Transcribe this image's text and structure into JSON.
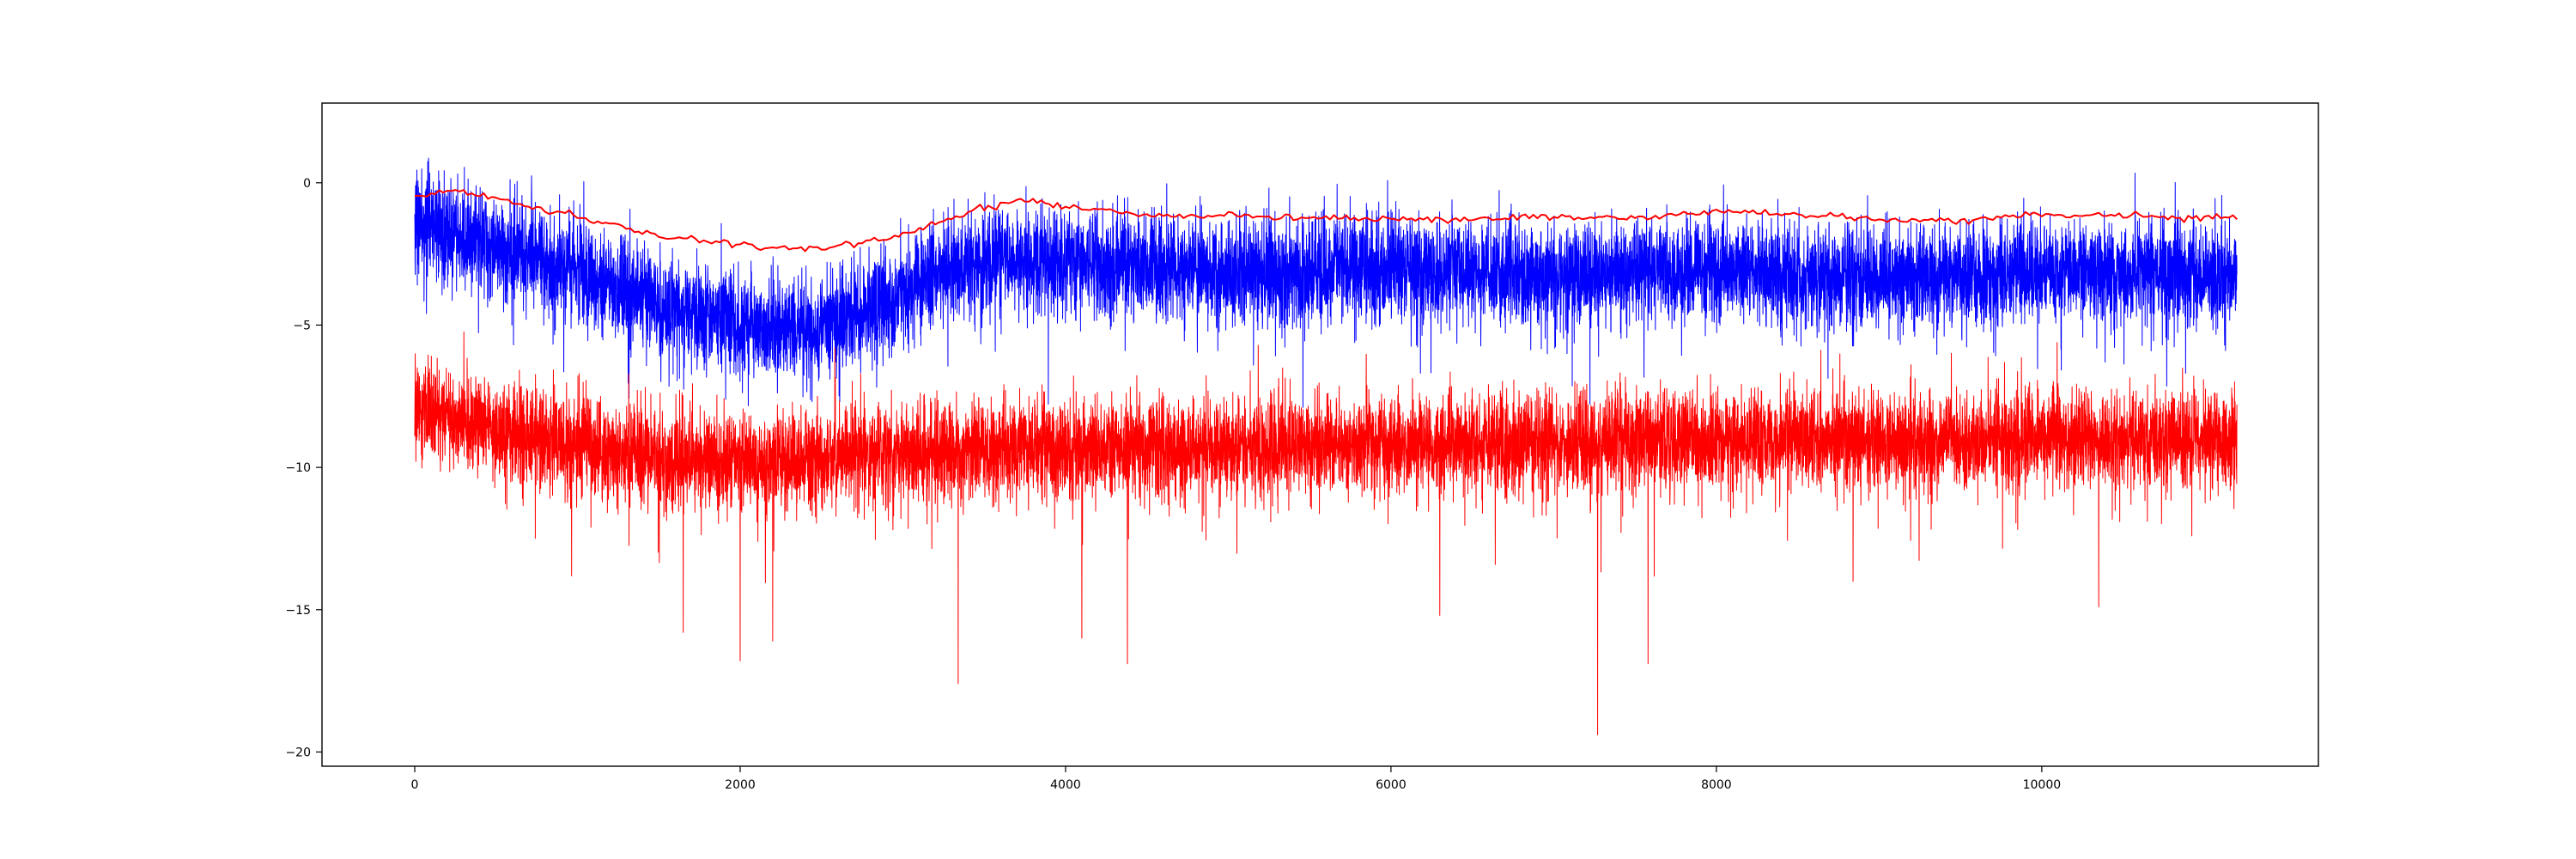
{
  "chart_data": {
    "type": "line",
    "title": "",
    "xlabel": "",
    "ylabel": "",
    "xlim": [
      -570,
      11700
    ],
    "ylim": [
      -20.5,
      2.8
    ],
    "x_ticks": [
      0,
      2000,
      4000,
      6000,
      8000,
      10000
    ],
    "y_ticks": [
      0,
      -5,
      -10,
      -15,
      -20
    ],
    "x_tick_labels": [
      "0",
      "2000",
      "4000",
      "6000",
      "8000",
      "10000"
    ],
    "y_tick_labels": [
      "0",
      "−5",
      "−10",
      "−15",
      "−20"
    ],
    "grid": false,
    "legend": "none",
    "n_points": 11200,
    "series": [
      {
        "color": "#0000ff",
        "style": "noisy",
        "trend": {
          "x": [
            0,
            300,
            600,
            1000,
            1500,
            2000,
            2400,
            2800,
            3200,
            3600,
            4000,
            5000,
            6000,
            7000,
            8000,
            9000,
            10000,
            11200
          ],
          "y": [
            -1.3,
            -1.9,
            -2.4,
            -3.1,
            -4.3,
            -5.0,
            -5.2,
            -4.5,
            -3.2,
            -2.6,
            -2.8,
            -3.2,
            -3.0,
            -3.3,
            -3.0,
            -3.4,
            -3.1,
            -3.3
          ]
        },
        "spread": 0.9,
        "max": 1.7,
        "min": -7.9
      },
      {
        "color": "#ff0000",
        "style": "noisy",
        "trend": {
          "x": [
            0,
            500,
            1000,
            1500,
            2000,
            3000,
            4000,
            5000,
            6000,
            7000,
            8000,
            9000,
            10000,
            11200
          ],
          "y": [
            -7.9,
            -8.7,
            -9.2,
            -9.7,
            -9.8,
            -9.5,
            -9.3,
            -9.3,
            -9.2,
            -9.1,
            -9.0,
            -9.1,
            -9.0,
            -9.0
          ]
        },
        "spread": 0.85,
        "max": -5.2,
        "min": -19.4,
        "spikes": [
          {
            "x": 2000,
            "y": -16.8
          },
          {
            "x": 2200,
            "y": -16.1
          },
          {
            "x": 3340,
            "y": -17.6
          },
          {
            "x": 4380,
            "y": -16.9
          },
          {
            "x": 7270,
            "y": -19.4
          },
          {
            "x": 7580,
            "y": -16.9
          },
          {
            "x": 1650,
            "y": -15.8
          },
          {
            "x": 4100,
            "y": -16.0
          },
          {
            "x": 6300,
            "y": -15.2
          },
          {
            "x": 10350,
            "y": -14.9
          }
        ]
      },
      {
        "color": "#ff0000",
        "style": "smooth",
        "points": {
          "x": [
            0,
            250,
            500,
            750,
            1000,
            1250,
            1500,
            1750,
            2000,
            2250,
            2500,
            2750,
            3000,
            3250,
            3500,
            3750,
            4000,
            4500,
            5000,
            5500,
            6000,
            6500,
            7000,
            7500,
            8000,
            8500,
            9000,
            9500,
            10000,
            10500,
            11200
          ],
          "y": [
            -0.45,
            -0.25,
            -0.55,
            -0.9,
            -1.2,
            -1.5,
            -1.85,
            -2.05,
            -2.2,
            -2.3,
            -2.3,
            -2.15,
            -1.8,
            -1.3,
            -0.9,
            -0.6,
            -0.85,
            -1.1,
            -1.2,
            -1.2,
            -1.25,
            -1.3,
            -1.2,
            -1.25,
            -1.0,
            -1.1,
            -1.3,
            -1.3,
            -1.1,
            -1.2,
            -1.2
          ]
        }
      }
    ]
  }
}
